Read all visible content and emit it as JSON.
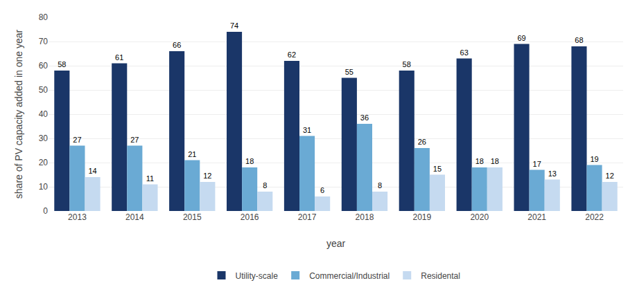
{
  "chart_data": {
    "type": "bar",
    "xlabel": "year",
    "ylabel": "share of PV capacity added in one year",
    "categories": [
      "2013",
      "2014",
      "2015",
      "2016",
      "2017",
      "2018",
      "2019",
      "2020",
      "2021",
      "2022"
    ],
    "series": [
      {
        "name": "Utility-scale",
        "color": "#1a3668",
        "values": [
          58,
          61,
          66,
          74,
          62,
          55,
          58,
          63,
          69,
          68
        ]
      },
      {
        "name": "Commercial/Industrial",
        "color": "#6aaad4",
        "values": [
          27,
          27,
          21,
          18,
          31,
          36,
          26,
          18,
          17,
          19
        ]
      },
      {
        "name": "Residental",
        "color": "#c5daf0",
        "values": [
          14,
          11,
          12,
          8,
          6,
          8,
          15,
          18,
          13,
          12
        ]
      }
    ],
    "ylim": [
      0,
      80
    ],
    "yticks": [
      0,
      10,
      20,
      30,
      40,
      50,
      60,
      70,
      80
    ],
    "grid": true,
    "legend": "bottom",
    "data_labels": true
  }
}
